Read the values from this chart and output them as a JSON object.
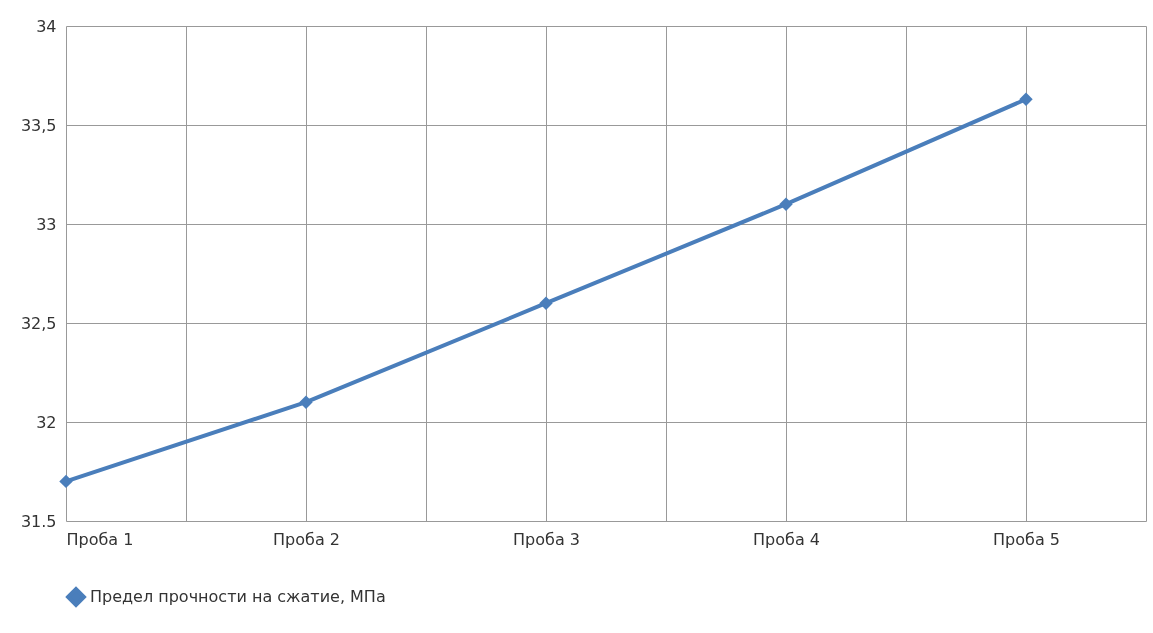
{
  "chart_data": {
    "type": "line",
    "categories": [
      "Проба 1",
      "Проба 2",
      "Проба 3",
      "Проба 4",
      "Проба 5"
    ],
    "series": [
      {
        "name": "Предел прочности на сжатие, МПа",
        "color": "#4a7ebb",
        "values": [
          31.7,
          32.1,
          32.6,
          33.1,
          33.63
        ]
      }
    ],
    "ylim": [
      31.5,
      34
    ],
    "yticks": [
      {
        "value": 31.5,
        "label": "31.5"
      },
      32,
      {
        "value": 32.5,
        "label": "32,5"
      },
      33,
      {
        "value": 33.5,
        "label": "33,5"
      },
      34
    ],
    "grid": true,
    "legend": "bottom",
    "marker": "diamond",
    "line_style": "solid"
  }
}
